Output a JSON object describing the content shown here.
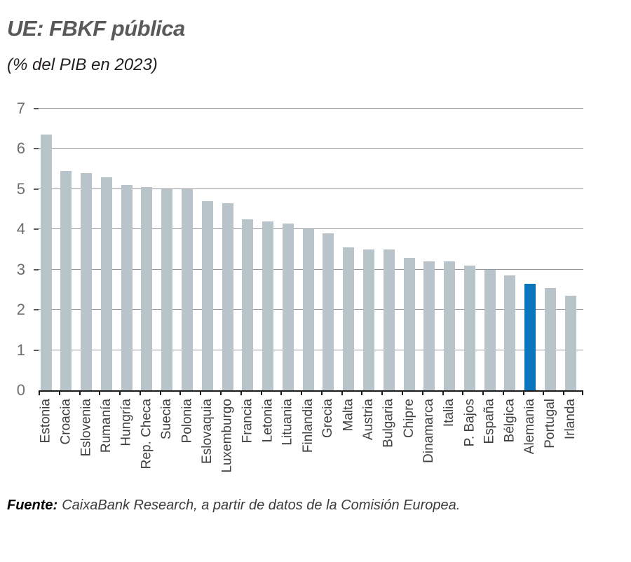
{
  "title": "UE: FBKF pública",
  "subtitle": "(% del PIB en 2023)",
  "source": {
    "label": "Fuente:",
    "text": "CaixaBank Research, a partir de datos de la Comisión Europea."
  },
  "chart_data": {
    "type": "bar",
    "title": "UE: FBKF pública",
    "subtitle": "(% del PIB en 2023)",
    "xlabel": "",
    "ylabel": "% del PIB",
    "categories": [
      "Estonia",
      "Croacia",
      "Eslovenia",
      "Rumanía",
      "Hungría",
      "Rep. Checa",
      "Suecia",
      "Polonia",
      "Eslovaquia",
      "Luxemburgo",
      "Francia",
      "Letonia",
      "Lituania",
      "Finlandia",
      "Grecia",
      "Malta",
      "Austria",
      "Bulgaria",
      "Chipre",
      "Dinamarca",
      "Italia",
      "P. Bajos",
      "España",
      "Bélgica",
      "Alemania",
      "Portugal",
      "Irlanda"
    ],
    "values": [
      6.35,
      5.45,
      5.4,
      5.3,
      5.1,
      5.05,
      5.0,
      5.0,
      4.7,
      4.65,
      4.25,
      4.2,
      4.15,
      4.0,
      3.9,
      3.55,
      3.5,
      3.5,
      3.3,
      3.2,
      3.2,
      3.1,
      3.0,
      2.85,
      2.65,
      2.55,
      2.35
    ],
    "highlight_category": "Alemania",
    "ylim": [
      0,
      7
    ],
    "yticks": [
      0,
      1,
      2,
      3,
      4,
      5,
      6,
      7
    ],
    "grid": true,
    "legend": false,
    "colors": {
      "bar": "#b9c4ca",
      "highlight": "#0a75bc",
      "gridline": "#949699",
      "axis": "#1a1a1a",
      "ytick_stub": "#58595b",
      "ytick_label": "#6d6e71",
      "xtick_label": "#404041"
    }
  }
}
